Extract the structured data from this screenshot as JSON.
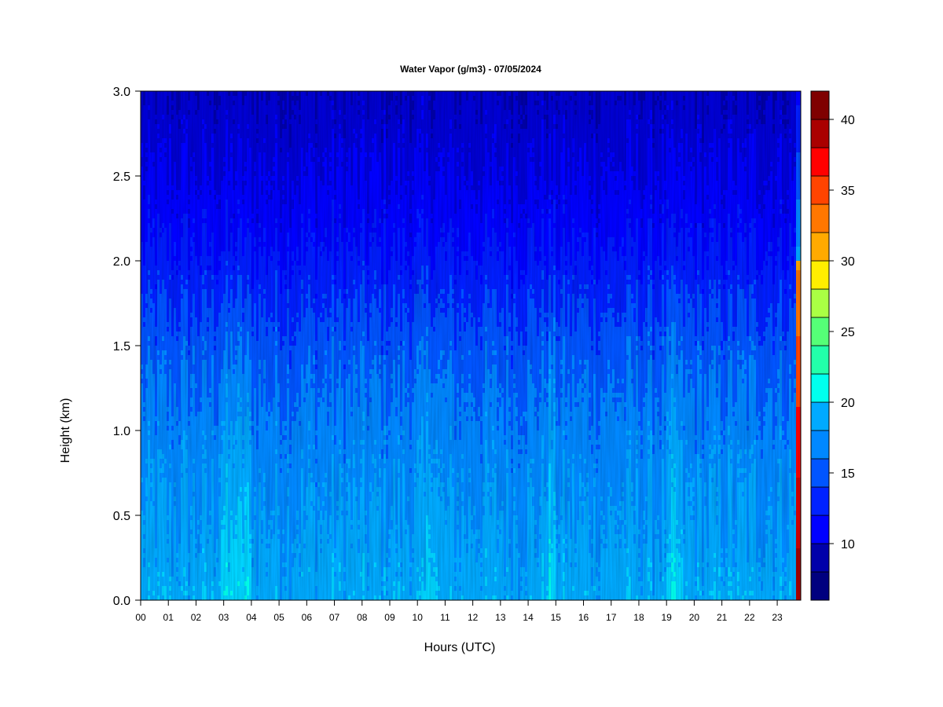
{
  "chart_data": {
    "type": "heatmap",
    "title": "Water Vapor (g/m3) - 07/05/2024",
    "xlabel": "Hours (UTC)",
    "ylabel": "Height (km)",
    "x_ticks": [
      "00",
      "01",
      "02",
      "03",
      "04",
      "05",
      "06",
      "07",
      "08",
      "09",
      "10",
      "11",
      "12",
      "13",
      "14",
      "15",
      "16",
      "17",
      "18",
      "19",
      "20",
      "21",
      "22",
      "23"
    ],
    "xlim": [
      0,
      23.85
    ],
    "y_ticks": [
      "0.0",
      "0.5",
      "1.0",
      "1.5",
      "2.0",
      "2.5",
      "3.0"
    ],
    "ylim": [
      0,
      3.0
    ],
    "colorbar": {
      "ticks": [
        "10",
        "15",
        "20",
        "25",
        "30",
        "35",
        "40"
      ],
      "range": [
        6,
        42
      ],
      "levels": [
        6,
        8,
        10,
        12,
        14,
        16,
        18,
        20,
        22,
        24,
        26,
        28,
        30,
        32,
        34,
        36,
        38,
        40,
        42
      ],
      "colors": [
        "#00007f",
        "#0000aa",
        "#0000d4",
        "#0000ff",
        "#0022ff",
        "#0055ff",
        "#0088ff",
        "#00aaff",
        "#00d4ff",
        "#00ffee",
        "#22ffaa",
        "#55ff77",
        "#aaff44",
        "#d4ff22",
        "#ffee00",
        "#ffaa00",
        "#ff7700",
        "#ff4400",
        "#ff0000",
        "#d40000",
        "#aa0000",
        "#7f0000"
      ]
    },
    "profile": {
      "height_km": [
        0.0,
        0.25,
        0.5,
        0.75,
        1.0,
        1.25,
        1.5,
        1.75,
        2.0,
        2.25,
        2.5,
        2.75,
        3.0
      ],
      "vapor_g_m3": [
        18.5,
        18.0,
        17.5,
        17.0,
        16.5,
        15.8,
        15.0,
        14.0,
        12.8,
        11.8,
        11.0,
        10.2,
        9.5
      ]
    },
    "moist_columns_hours": [
      3.0,
      3.4,
      3.8,
      10.5,
      14.8,
      19.3
    ]
  }
}
